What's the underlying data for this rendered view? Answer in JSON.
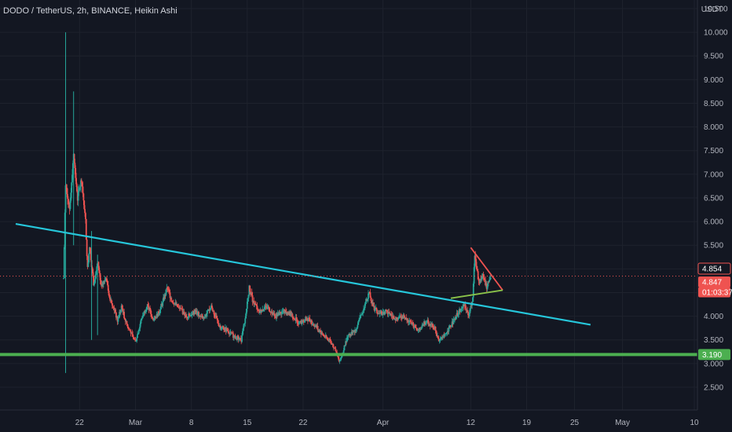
{
  "header": {
    "title": "DODO / TetherUS, 2h, BINANCE, Heikin Ashi",
    "currency": "USDT"
  },
  "chart_data": {
    "type": "candlestick",
    "symbol": "DODO / TetherUS",
    "interval": "2h",
    "exchange": "BINANCE",
    "style": "Heikin Ashi",
    "currency": "USDT",
    "ylim": [
      2.25,
      10.45
    ],
    "xlim_days": [
      "2021-02-14",
      "2021-05-10"
    ],
    "y_ticks": [
      "2.500",
      "3.000",
      "3.500",
      "4.000",
      "4.500",
      "5.000",
      "5.500",
      "6.000",
      "6.500",
      "7.000",
      "7.500",
      "8.000",
      "8.500",
      "9.000",
      "9.500",
      "10.000",
      "10.500"
    ],
    "x_ticks": [
      {
        "label": "22",
        "date": "2021-02-22"
      },
      {
        "label": "Mar",
        "date": "2021-03-01"
      },
      {
        "label": "8",
        "date": "2021-03-08"
      },
      {
        "label": "15",
        "date": "2021-03-15"
      },
      {
        "label": "22",
        "date": "2021-03-22"
      },
      {
        "label": "Apr",
        "date": "2021-04-01"
      },
      {
        "label": "12",
        "date": "2021-04-12"
      },
      {
        "label": "19",
        "date": "2021-04-19"
      },
      {
        "label": "25",
        "date": "2021-04-25"
      },
      {
        "label": "May",
        "date": "2021-05-01"
      },
      {
        "label": "10",
        "date": "2021-05-10"
      }
    ],
    "up_color": "#26a69a",
    "down_color": "#ef5350",
    "price_path": [
      [
        "2021-02-20 00:00",
        4.8
      ],
      [
        "2021-02-20 06:00",
        6.8
      ],
      [
        "2021-02-20 18:00",
        6.3
      ],
      [
        "2021-02-21 06:00",
        7.4
      ],
      [
        "2021-02-21 18:00",
        6.5
      ],
      [
        "2021-02-22 06:00",
        6.9
      ],
      [
        "2021-02-22 18:00",
        6.0
      ],
      [
        "2021-02-23 00:00",
        5.0
      ],
      [
        "2021-02-23 06:00",
        5.5
      ],
      [
        "2021-02-23 18:00",
        4.7
      ],
      [
        "2021-02-24 06:00",
        5.1
      ],
      [
        "2021-02-24 18:00",
        4.6
      ],
      [
        "2021-02-25 06:00",
        4.85
      ],
      [
        "2021-02-25 18:00",
        4.4
      ],
      [
        "2021-02-26 06:00",
        4.2
      ],
      [
        "2021-02-26 18:00",
        3.9
      ],
      [
        "2021-02-27 06:00",
        4.2
      ],
      [
        "2021-02-27 18:00",
        3.9
      ],
      [
        "2021-02-28 06:00",
        3.7
      ],
      [
        "2021-03-01 00:00",
        3.45
      ],
      [
        "2021-03-01 18:00",
        3.95
      ],
      [
        "2021-03-02 12:00",
        4.25
      ],
      [
        "2021-03-03 06:00",
        3.9
      ],
      [
        "2021-03-04 00:00",
        4.1
      ],
      [
        "2021-03-05 00:00",
        4.6
      ],
      [
        "2021-03-05 12:00",
        4.35
      ],
      [
        "2021-03-06 12:00",
        4.15
      ],
      [
        "2021-03-07 12:00",
        4.0
      ],
      [
        "2021-03-08 12:00",
        4.1
      ],
      [
        "2021-03-09 12:00",
        3.95
      ],
      [
        "2021-03-10 12:00",
        4.2
      ],
      [
        "2021-03-11 12:00",
        3.8
      ],
      [
        "2021-03-12 12:00",
        3.7
      ],
      [
        "2021-03-13 12:00",
        3.55
      ],
      [
        "2021-03-14 06:00",
        3.5
      ],
      [
        "2021-03-14 18:00",
        3.95
      ],
      [
        "2021-03-15 06:00",
        4.6
      ],
      [
        "2021-03-15 18:00",
        4.3
      ],
      [
        "2021-03-16 12:00",
        4.1
      ],
      [
        "2021-03-17 12:00",
        4.2
      ],
      [
        "2021-03-18 12:00",
        4.0
      ],
      [
        "2021-03-19 12:00",
        4.1
      ],
      [
        "2021-03-20 12:00",
        4.05
      ],
      [
        "2021-03-21 12:00",
        3.85
      ],
      [
        "2021-03-22 12:00",
        3.95
      ],
      [
        "2021-03-23 12:00",
        3.8
      ],
      [
        "2021-03-24 12:00",
        3.6
      ],
      [
        "2021-03-25 12:00",
        3.45
      ],
      [
        "2021-03-26 00:00",
        3.3
      ],
      [
        "2021-03-26 12:00",
        3.05
      ],
      [
        "2021-03-27 00:00",
        3.25
      ],
      [
        "2021-03-27 12:00",
        3.55
      ],
      [
        "2021-03-28 12:00",
        3.7
      ],
      [
        "2021-03-29 12:00",
        4.1
      ],
      [
        "2021-03-30 06:00",
        4.5
      ],
      [
        "2021-03-30 18:00",
        4.2
      ],
      [
        "2021-03-31 12:00",
        4.05
      ],
      [
        "2021-04-01 12:00",
        4.1
      ],
      [
        "2021-04-02 12:00",
        3.95
      ],
      [
        "2021-04-03 12:00",
        4.0
      ],
      [
        "2021-04-04 12:00",
        3.85
      ],
      [
        "2021-04-05 12:00",
        3.7
      ],
      [
        "2021-04-06 12:00",
        3.9
      ],
      [
        "2021-04-07 12:00",
        3.75
      ],
      [
        "2021-04-08 00:00",
        3.45
      ],
      [
        "2021-04-08 12:00",
        3.55
      ],
      [
        "2021-04-09 12:00",
        3.8
      ],
      [
        "2021-04-10 12:00",
        4.1
      ],
      [
        "2021-04-11 06:00",
        4.25
      ],
      [
        "2021-04-11 18:00",
        4.0
      ],
      [
        "2021-04-12 06:00",
        4.4
      ],
      [
        "2021-04-12 12:00",
        5.3
      ],
      [
        "2021-04-13 00:00",
        4.7
      ],
      [
        "2021-04-13 12:00",
        4.9
      ],
      [
        "2021-04-14 00:00",
        4.6
      ],
      [
        "2021-04-14 12:00",
        4.85
      ]
    ],
    "spikes": [
      {
        "date": "2021-02-20 06:00",
        "high": 10.0,
        "low": 2.8
      },
      {
        "date": "2021-02-21 06:00",
        "high": 8.75,
        "low": 5.5
      },
      {
        "date": "2021-02-23 12:00",
        "high": 5.8,
        "low": 3.5
      },
      {
        "date": "2021-02-24 06:00",
        "high": 5.3,
        "low": 3.6
      }
    ],
    "annotations": {
      "descending_trendline": {
        "color": "#26c6da",
        "from": [
          "2021-02-14",
          5.95
        ],
        "to": [
          "2021-04-27",
          3.82
        ]
      },
      "support_line": {
        "color": "#4caf50",
        "price": 3.19
      },
      "wedge": {
        "color_upper": "#ef5350",
        "color_lower": "#8bc34a",
        "apex": [
          "2021-04-16 00:00",
          4.55
        ],
        "upper_start": [
          "2021-04-12 00:00",
          5.45
        ],
        "lower_start": [
          "2021-04-09 12:00",
          4.38
        ]
      }
    },
    "price_labels": [
      {
        "text": "4.854",
        "value": 4.854,
        "color": "#ef5350",
        "style": "outline"
      },
      {
        "text": "4.847",
        "value": 4.847,
        "color": "#ef5350",
        "style": "filled"
      },
      {
        "text": "01:03:37",
        "color": "#ef5350",
        "style": "filled"
      },
      {
        "text": "3.190",
        "value": 3.19,
        "color": "#4caf50",
        "style": "filled"
      }
    ]
  }
}
